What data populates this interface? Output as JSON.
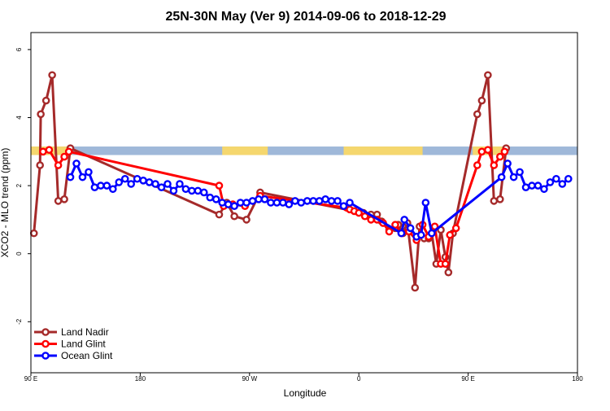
{
  "chart_data": {
    "type": "line",
    "title": "25N-30N May (Ver 9)   2014-09-06 to 2018-12-29",
    "xlabel": "Longitude",
    "ylabel": "XCO2 - MLO trend (ppm)",
    "xlim": [
      0,
      360
    ],
    "ylim": [
      -3.5,
      6.5
    ],
    "x_ticks": [
      {
        "x": 0,
        "label": "90 E"
      },
      {
        "x": 72,
        "label": "180"
      },
      {
        "x": 144,
        "label": "90 W"
      },
      {
        "x": 216,
        "label": "0"
      },
      {
        "x": 288,
        "label": "90 E"
      },
      {
        "x": 360,
        "label": "180"
      }
    ],
    "y_ticks": [
      {
        "y": -2,
        "label": "-2"
      },
      {
        "y": 0,
        "label": "0"
      },
      {
        "y": 2,
        "label": "2"
      },
      {
        "y": 4,
        "label": "4"
      },
      {
        "y": 6,
        "label": "6"
      }
    ],
    "grid": false,
    "legend_position": "bottom-left",
    "land_ocean_band": {
      "y_range": [
        2.9,
        3.15
      ],
      "land_color": "#f5d76e",
      "ocean_color": "#9fb8d9",
      "land_x_ranges": [
        [
          0,
          27
        ],
        [
          126,
          156
        ],
        [
          206,
          258
        ],
        [
          291,
          312
        ]
      ]
    },
    "series": [
      {
        "name": "Land Nadir",
        "color": "#a52a2a",
        "points": [
          [
            2,
            0.6
          ],
          [
            6,
            2.6
          ],
          [
            6.5,
            4.1
          ],
          [
            10,
            4.5
          ],
          [
            14,
            5.25
          ],
          [
            18,
            1.55
          ],
          [
            22,
            1.6
          ],
          [
            26,
            3.1
          ],
          [
            124,
            1.15
          ],
          [
            129,
            1.5
          ],
          [
            134,
            1.1
          ],
          [
            142,
            1.0
          ],
          [
            151,
            1.8
          ],
          [
            219,
            1.2
          ],
          [
            224,
            1.15
          ],
          [
            228,
            1.15
          ],
          [
            231,
            0.95
          ],
          [
            236,
            0.7
          ],
          [
            240,
            0.75
          ],
          [
            242,
            0.85
          ],
          [
            245,
            0.6
          ],
          [
            248,
            0.9
          ],
          [
            253,
            -1.0
          ],
          [
            256,
            0.8
          ],
          [
            259,
            0.45
          ],
          [
            262,
            0.45
          ],
          [
            264,
            0.6
          ],
          [
            267,
            -0.3
          ],
          [
            270,
            0.7
          ],
          [
            273,
            -0.1
          ],
          [
            275,
            -0.55
          ],
          [
            278,
            0.6
          ],
          [
            294,
            4.1
          ],
          [
            297,
            4.5
          ],
          [
            301,
            5.25
          ],
          [
            305,
            1.55
          ],
          [
            309,
            1.6
          ],
          [
            313,
            3.1
          ]
        ]
      },
      {
        "name": "Land Glint",
        "color": "#ff0000",
        "points": [
          [
            8,
            3.0
          ],
          [
            12,
            3.05
          ],
          [
            18,
            2.6
          ],
          [
            22,
            2.85
          ],
          [
            25,
            3.0
          ],
          [
            124,
            2.0
          ],
          [
            127,
            1.4
          ],
          [
            133,
            1.45
          ],
          [
            141,
            1.4
          ],
          [
            151,
            1.7
          ],
          [
            208,
            1.35
          ],
          [
            210,
            1.3
          ],
          [
            213,
            1.25
          ],
          [
            216,
            1.2
          ],
          [
            220,
            1.1
          ],
          [
            224,
            1.0
          ],
          [
            228,
            1.0
          ],
          [
            232,
            0.9
          ],
          [
            236,
            0.65
          ],
          [
            240,
            0.85
          ],
          [
            244,
            0.6
          ],
          [
            249,
            0.65
          ],
          [
            254,
            0.4
          ],
          [
            258,
            0.85
          ],
          [
            262,
            0.5
          ],
          [
            266,
            0.8
          ],
          [
            270,
            -0.3
          ],
          [
            273,
            -0.3
          ],
          [
            276,
            0.55
          ],
          [
            280,
            0.75
          ],
          [
            294,
            2.6
          ],
          [
            297,
            3.0
          ],
          [
            301,
            3.05
          ],
          [
            305,
            2.6
          ],
          [
            309,
            2.85
          ],
          [
            312,
            3.0
          ]
        ]
      },
      {
        "name": "Ocean Glint",
        "color": "#0000ff",
        "points": [
          [
            26,
            2.25
          ],
          [
            30,
            2.65
          ],
          [
            34,
            2.25
          ],
          [
            38,
            2.4
          ],
          [
            42,
            1.95
          ],
          [
            46,
            2.0
          ],
          [
            50,
            2.0
          ],
          [
            54,
            1.9
          ],
          [
            58,
            2.1
          ],
          [
            62,
            2.2
          ],
          [
            66,
            2.05
          ],
          [
            70,
            2.2
          ],
          [
            74,
            2.15
          ],
          [
            78,
            2.1
          ],
          [
            82,
            2.05
          ],
          [
            86,
            1.95
          ],
          [
            90,
            2.05
          ],
          [
            94,
            1.85
          ],
          [
            98,
            2.05
          ],
          [
            102,
            1.9
          ],
          [
            106,
            1.85
          ],
          [
            110,
            1.85
          ],
          [
            114,
            1.8
          ],
          [
            118,
            1.65
          ],
          [
            122,
            1.6
          ],
          [
            126,
            1.5
          ],
          [
            130,
            1.45
          ],
          [
            134,
            1.4
          ],
          [
            138,
            1.5
          ],
          [
            142,
            1.5
          ],
          [
            146,
            1.55
          ],
          [
            150,
            1.6
          ],
          [
            154,
            1.6
          ],
          [
            158,
            1.5
          ],
          [
            162,
            1.5
          ],
          [
            166,
            1.5
          ],
          [
            170,
            1.45
          ],
          [
            174,
            1.55
          ],
          [
            178,
            1.5
          ],
          [
            182,
            1.55
          ],
          [
            186,
            1.55
          ],
          [
            190,
            1.55
          ],
          [
            194,
            1.6
          ],
          [
            198,
            1.55
          ],
          [
            202,
            1.55
          ],
          [
            206,
            1.4
          ],
          [
            210,
            1.5
          ],
          [
            244,
            0.6
          ],
          [
            246,
            1.0
          ],
          [
            250,
            0.75
          ],
          [
            254,
            0.5
          ],
          [
            257,
            0.55
          ],
          [
            260,
            1.5
          ],
          [
            264,
            0.6
          ],
          [
            310,
            2.25
          ],
          [
            314,
            2.65
          ],
          [
            318,
            2.25
          ],
          [
            322,
            2.4
          ],
          [
            326,
            1.95
          ],
          [
            330,
            2.0
          ],
          [
            334,
            2.0
          ],
          [
            338,
            1.9
          ],
          [
            342,
            2.1
          ],
          [
            346,
            2.2
          ],
          [
            350,
            2.05
          ],
          [
            354,
            2.2
          ]
        ]
      }
    ]
  }
}
